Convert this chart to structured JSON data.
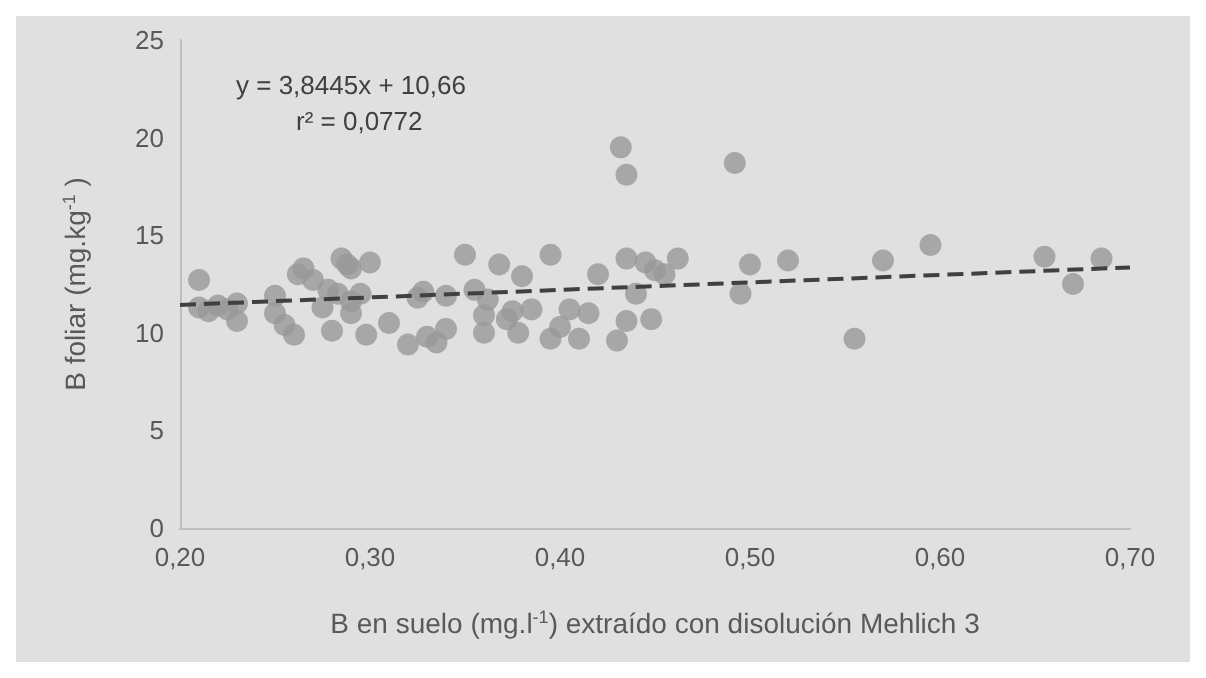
{
  "chart_data": {
    "type": "scatter",
    "xlabel": "B en suelo (mg.l$^{-1}$) extraído con disolución Mehlich 3",
    "ylabel": "B foliar (mg.kg$^{-1}$ )",
    "xlim": [
      0.2,
      0.7
    ],
    "xticks": [
      {
        "value": 0.2,
        "label": "0,20"
      },
      {
        "value": 0.3,
        "label": "0,30"
      },
      {
        "value": 0.4,
        "label": "0,40"
      },
      {
        "value": 0.5,
        "label": "0,50"
      },
      {
        "value": 0.6,
        "label": "0,60"
      },
      {
        "value": 0.7,
        "label": "0,70"
      }
    ],
    "ylim": [
      0,
      25
    ],
    "yticks": [
      0,
      5,
      10,
      15,
      20,
      25
    ],
    "grid": false,
    "marker": "circle",
    "annotations": [
      "y = 3,8445x + 10,66",
      "r² = 0,0772"
    ],
    "series": [
      {
        "color": "#999999",
        "x": [
          0.21,
          0.21,
          0.215,
          0.22,
          0.225,
          0.23,
          0.23,
          0.25,
          0.25,
          0.255,
          0.26,
          0.262,
          0.265,
          0.27,
          0.275,
          0.278,
          0.28,
          0.283,
          0.285,
          0.288,
          0.29,
          0.29,
          0.29,
          0.295,
          0.298,
          0.3,
          0.31,
          0.32,
          0.325,
          0.328,
          0.33,
          0.335,
          0.34,
          0.34,
          0.35,
          0.355,
          0.36,
          0.36,
          0.362,
          0.368,
          0.372,
          0.375,
          0.378,
          0.38,
          0.385,
          0.395,
          0.395,
          0.4,
          0.405,
          0.41,
          0.415,
          0.42,
          0.43,
          0.432,
          0.435,
          0.435,
          0.435,
          0.44,
          0.445,
          0.448,
          0.45,
          0.455,
          0.462,
          0.492,
          0.495,
          0.5,
          0.52,
          0.555,
          0.57,
          0.595,
          0.655,
          0.67,
          0.685
        ],
        "values": [
          11.3,
          12.7,
          11.1,
          11.4,
          11.2,
          11.5,
          10.6,
          11.9,
          11.0,
          10.4,
          9.9,
          13.0,
          13.3,
          12.7,
          11.3,
          12.2,
          10.1,
          12.0,
          13.8,
          13.5,
          13.3,
          11.0,
          11.6,
          12.0,
          9.9,
          13.6,
          10.5,
          9.4,
          11.8,
          12.1,
          9.8,
          9.5,
          10.2,
          11.9,
          14.0,
          12.2,
          10.0,
          10.9,
          11.7,
          13.5,
          10.7,
          11.1,
          10.0,
          12.9,
          11.2,
          14.0,
          9.7,
          10.3,
          11.2,
          9.7,
          11.0,
          13.0,
          9.6,
          19.5,
          18.1,
          13.8,
          10.6,
          12.0,
          13.6,
          10.7,
          13.2,
          13.0,
          13.8,
          18.7,
          12.0,
          13.5,
          13.7,
          9.7,
          13.7,
          14.5,
          13.9,
          12.5,
          13.8
        ]
      },
      {
        "type": "line",
        "color": "#404040",
        "line_style": "dashed",
        "marker": "none",
        "x": [
          0.2,
          0.7
        ],
        "values": [
          11.429,
          13.351
        ]
      }
    ]
  }
}
